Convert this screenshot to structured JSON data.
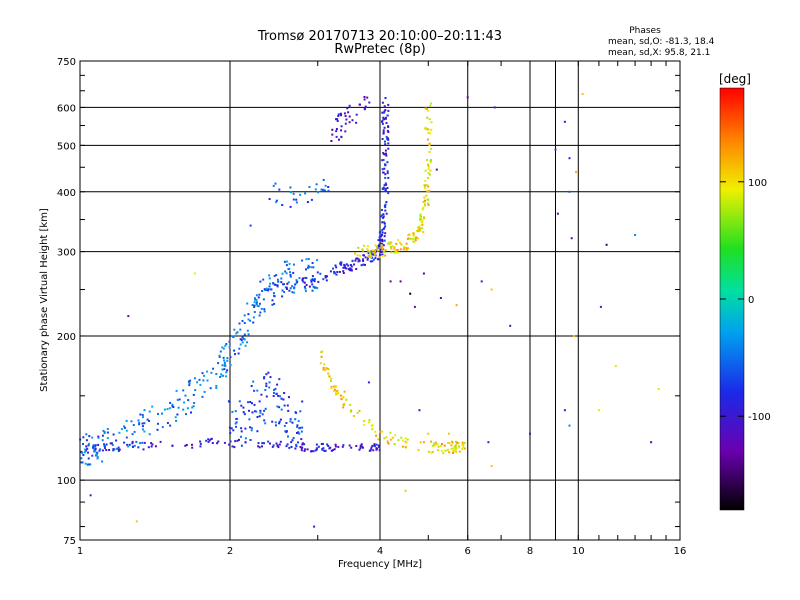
{
  "chart_data": {
    "type": "scatter",
    "title": "Tromsø 20170713 20:10:00–20:11:43",
    "subtitle": "RwPretec (8p)",
    "xlabel": "Frequency [MHz]",
    "ylabel": "Stationary phase Virtual Height [km]",
    "x_scale": "log",
    "y_scale": "log",
    "xlim": [
      1,
      16
    ],
    "ylim": [
      75,
      750
    ],
    "x_ticks": [
      1,
      2,
      4,
      6,
      8,
      10,
      16
    ],
    "y_ticks": [
      75,
      100,
      200,
      300,
      400,
      500,
      600,
      750
    ],
    "grid": true,
    "stats": {
      "heading": "Phases",
      "line1": "mean, sd,O: -81.3, 18.4",
      "line2": "mean, sd,X:  95.8, 21.1"
    },
    "colorbar": {
      "label": "[deg]",
      "min": -180,
      "max": 180,
      "tick_labels": [
        "100",
        "0",
        "-100"
      ],
      "tick_values": [
        100,
        0,
        -100
      ]
    },
    "traces": [
      {
        "name": "",
        "phase": -95,
        "segments": [
          [
            1.0,
            116
          ],
          [
            1.15,
            118
          ],
          [
            1.5,
            118
          ],
          [
            1.9,
            120
          ],
          [
            2.5,
            118
          ],
          [
            3.0,
            117
          ],
          [
            3.6,
            117
          ],
          [
            4.0,
            117
          ]
        ],
        "spread_y": 0.02,
        "count": 150
      },
      {
        "name": "",
        "phase": -50,
        "segments": [
          [
            1.0,
            115
          ],
          [
            1.1,
            118
          ],
          [
            1.3,
            128
          ],
          [
            1.6,
            145
          ],
          [
            1.9,
            170
          ],
          [
            2.1,
            200
          ],
          [
            2.3,
            240
          ],
          [
            2.6,
            265
          ],
          [
            3.0,
            270
          ]
        ],
        "spread_y": 0.08,
        "count": 320
      },
      {
        "name": "",
        "phase": -90,
        "segments": [
          [
            2.4,
            250
          ],
          [
            3.0,
            262
          ],
          [
            3.4,
            278
          ],
          [
            3.8,
            290
          ],
          [
            4.0,
            300
          ],
          [
            4.05,
            330
          ],
          [
            4.1,
            400
          ],
          [
            4.1,
            500
          ],
          [
            4.1,
            620
          ]
        ],
        "spread_y": 0.03,
        "count": 230
      },
      {
        "name": "",
        "phase": 100,
        "segments": [
          [
            3.6,
            300
          ],
          [
            4.0,
            300
          ],
          [
            4.5,
            310
          ],
          [
            4.8,
            330
          ],
          [
            4.95,
            380
          ],
          [
            5.0,
            450
          ],
          [
            5.0,
            600
          ]
        ],
        "spread_y": 0.03,
        "count": 160
      },
      {
        "name": "",
        "phase": 105,
        "segments": [
          [
            3.0,
            190
          ],
          [
            3.2,
            160
          ],
          [
            3.5,
            140
          ],
          [
            4.0,
            125
          ],
          [
            4.6,
            118
          ],
          [
            5.5,
            117
          ],
          [
            5.9,
            118
          ]
        ],
        "spread_y": 0.03,
        "count": 130
      },
      {
        "name": "",
        "phase": -70,
        "segments": [
          [
            2.0,
            130
          ],
          [
            2.4,
            150
          ],
          [
            2.8,
            130
          ]
        ],
        "spread_y": 0.12,
        "count": 120
      },
      {
        "name": "",
        "phase": -110,
        "segments": [
          [
            3.2,
            520
          ],
          [
            3.5,
            580
          ],
          [
            3.8,
            600
          ]
        ],
        "spread_y": 0.06,
        "count": 40
      },
      {
        "name": "",
        "phase": -60,
        "segments": [
          [
            2.4,
            400
          ],
          [
            2.8,
            380
          ],
          [
            3.2,
            420
          ]
        ],
        "spread_y": 0.05,
        "count": 30
      }
    ],
    "scattered_points": [
      [
        1.25,
        220,
        -120
      ],
      [
        1.05,
        93,
        -90
      ],
      [
        1.3,
        82,
        110
      ],
      [
        2.95,
        80,
        -110
      ],
      [
        4.5,
        95,
        110
      ],
      [
        5.2,
        445,
        -130
      ],
      [
        5.3,
        240,
        -120
      ],
      [
        5.7,
        232,
        120
      ],
      [
        6.0,
        630,
        -130
      ],
      [
        6.4,
        260,
        -100
      ],
      [
        6.6,
        120,
        -90
      ],
      [
        6.7,
        250,
        110
      ],
      [
        6.7,
        107,
        110
      ],
      [
        6.8,
        600,
        -80
      ],
      [
        7.3,
        210,
        -110
      ],
      [
        9.0,
        490,
        -70
      ],
      [
        9.1,
        360,
        -120
      ],
      [
        9.4,
        560,
        -110
      ],
      [
        9.6,
        470,
        -90
      ],
      [
        9.6,
        400,
        -60
      ],
      [
        9.7,
        320,
        -120
      ],
      [
        9.8,
        200,
        110
      ],
      [
        9.9,
        440,
        120
      ],
      [
        10.2,
        640,
        110
      ],
      [
        11.1,
        230,
        -80
      ],
      [
        11.4,
        310,
        -150
      ],
      [
        11.9,
        173,
        100
      ],
      [
        11.0,
        140,
        100
      ],
      [
        13.0,
        325,
        -40
      ],
      [
        14.0,
        120,
        -130
      ],
      [
        14.5,
        155,
        100
      ],
      [
        9.4,
        140,
        -100
      ],
      [
        9.6,
        130,
        -40
      ],
      [
        8.0,
        125,
        -110
      ],
      [
        4.9,
        270,
        -140
      ],
      [
        4.6,
        245,
        -180
      ],
      [
        4.4,
        260,
        -130
      ],
      [
        4.7,
        230,
        -120
      ],
      [
        3.8,
        160,
        -100
      ],
      [
        4.8,
        140,
        -110
      ],
      [
        5.0,
        125,
        110
      ],
      [
        5.5,
        125,
        110
      ],
      [
        4.2,
        260,
        -130
      ],
      [
        2.2,
        340,
        -70
      ],
      [
        1.7,
        270,
        90
      ]
    ]
  }
}
